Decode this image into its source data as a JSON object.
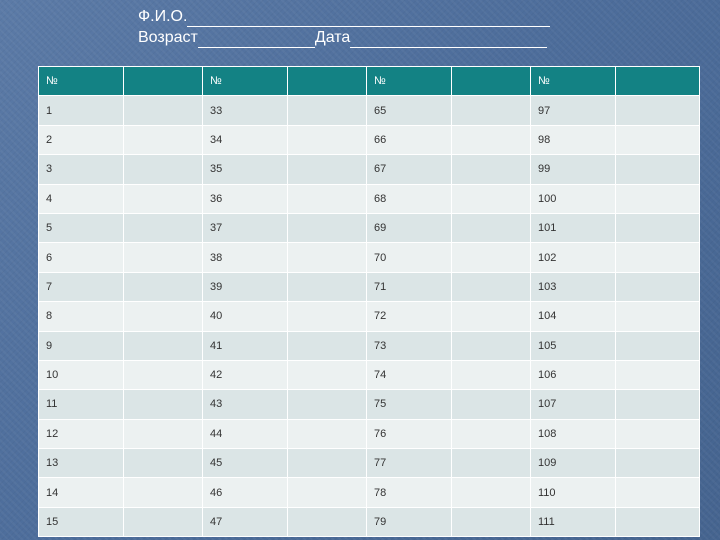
{
  "header": {
    "fio_label": "Ф.И.О.",
    "age_label": "Возраст",
    "date_label": "Дата"
  },
  "table": {
    "header_symbol": "№",
    "rows": [
      [
        "1",
        "33",
        "65",
        "97"
      ],
      [
        "2",
        "34",
        "66",
        "98"
      ],
      [
        "3",
        "35",
        "67",
        "99"
      ],
      [
        "4",
        "36",
        "68",
        "100"
      ],
      [
        "5",
        "37",
        "69",
        "101"
      ],
      [
        "6",
        "38",
        "70",
        "102"
      ],
      [
        "7",
        "39",
        "71",
        "103"
      ],
      [
        "8",
        "40",
        "72",
        "104"
      ],
      [
        "9",
        "41",
        "73",
        "105"
      ],
      [
        "10",
        "42",
        "74",
        "106"
      ],
      [
        "11",
        "43",
        "75",
        "107"
      ],
      [
        "12",
        "44",
        "76",
        "108"
      ],
      [
        "13",
        "45",
        "77",
        "109"
      ],
      [
        "14",
        "46",
        "78",
        "110"
      ],
      [
        "15",
        "47",
        "79",
        "111"
      ]
    ]
  }
}
